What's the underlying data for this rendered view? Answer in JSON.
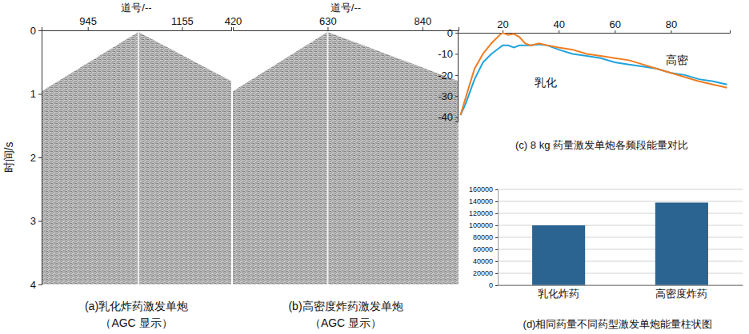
{
  "chart_data": [
    {
      "type": "seismic",
      "title": "(a)乳化炸药激发单炮",
      "subtitle": "（AGC 显示）",
      "x_label": "道号/--",
      "y_label": "时间/s",
      "xlim": [
        842,
        1265
      ],
      "xticks": [
        945,
        1155
      ],
      "ylim": [
        0,
        4
      ],
      "yticks": [
        0,
        1,
        2,
        3,
        4
      ]
    },
    {
      "type": "seismic",
      "title": "(b)高密度炸药激发单炮",
      "subtitle": "（AGC 显示）",
      "x_label": "道号/--",
      "xlim": [
        420,
        920
      ],
      "xticks": [
        420,
        630,
        840
      ],
      "tick_labels": "x"
    },
    {
      "type": "line",
      "title": "(c) 8 kg 药量激发单炮各频段能量对比",
      "x": [
        5,
        7,
        10,
        13,
        16,
        19,
        20,
        22,
        24,
        26,
        28,
        30,
        33,
        36,
        40,
        45,
        50,
        55,
        60,
        65,
        70,
        75,
        80,
        85,
        90,
        95,
        100
      ],
      "series": [
        {
          "name": "乳化",
          "color": "#1fa3dc",
          "values": [
            -39,
            -33,
            -22,
            -14,
            -10,
            -7,
            -6,
            -6,
            -7,
            -6,
            -6,
            -6,
            -5.5,
            -6,
            -8,
            -10,
            -11,
            -12,
            -14,
            -15,
            -16,
            -17,
            -19,
            -20,
            -22,
            -23,
            -24.5
          ]
        },
        {
          "name": "高密",
          "color": "#ef7d22",
          "values": [
            -39,
            -30,
            -17,
            -10,
            -5,
            -1,
            0,
            -1,
            -0.5,
            -2,
            -5,
            -6,
            -5,
            -6,
            -7,
            -8,
            -10,
            -11,
            -12,
            -13,
            -15,
            -17,
            -19,
            -21,
            -23,
            -24.5,
            -26
          ]
        }
      ],
      "xlim": [
        4,
        101
      ],
      "xticks": [
        20,
        40,
        60,
        80
      ],
      "ylim": [
        -42,
        0
      ],
      "yticks": [
        0,
        -10,
        -20,
        -30,
        -40
      ]
    },
    {
      "type": "bar",
      "title": "(d)相同药量不同药型激发单炮能量柱状图",
      "categories": [
        "乳化炸药",
        "高密度炸药"
      ],
      "values": [
        100000,
        138000
      ],
      "color": "#2b6490",
      "ylim": [
        0,
        160000
      ],
      "yticks": [
        0,
        20000,
        40000,
        60000,
        80000,
        100000,
        120000,
        140000,
        160000
      ],
      "grid": true
    }
  ]
}
